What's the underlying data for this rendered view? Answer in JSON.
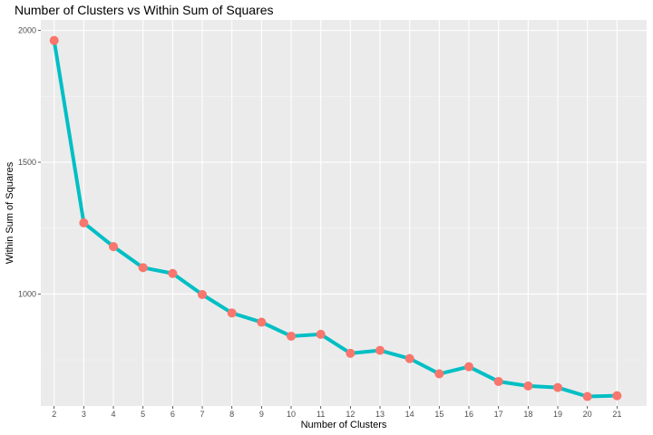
{
  "chart_data": {
    "type": "line",
    "title": "Number of Clusters vs Within Sum of Squares",
    "xlabel": "Number of Clusters",
    "ylabel": "Within Sum of Squares",
    "x": [
      2,
      3,
      4,
      5,
      6,
      7,
      8,
      9,
      10,
      11,
      12,
      13,
      14,
      15,
      16,
      17,
      18,
      19,
      20,
      21
    ],
    "series": [
      {
        "values": [
          1962,
          1270,
          1180,
          1100,
          1078,
          998,
          928,
          893,
          840,
          847,
          775,
          786,
          755,
          697,
          724,
          668,
          651,
          645,
          611,
          614
        ]
      }
    ],
    "xlim": [
      1.55,
      22.0
    ],
    "ylim": [
      575,
      2040
    ],
    "x_ticks": [
      2,
      3,
      4,
      5,
      6,
      7,
      8,
      9,
      10,
      11,
      12,
      13,
      14,
      15,
      16,
      17,
      18,
      19,
      20,
      21
    ],
    "y_ticks": [
      1000,
      1500,
      2000
    ],
    "grid": true,
    "legend": "none",
    "colors": {
      "line": "#00BFC4",
      "point": "#F8766D",
      "panel": "#EBEBEB",
      "grid_major": "#FFFFFF",
      "grid_minor": "#F5F5F5"
    }
  }
}
